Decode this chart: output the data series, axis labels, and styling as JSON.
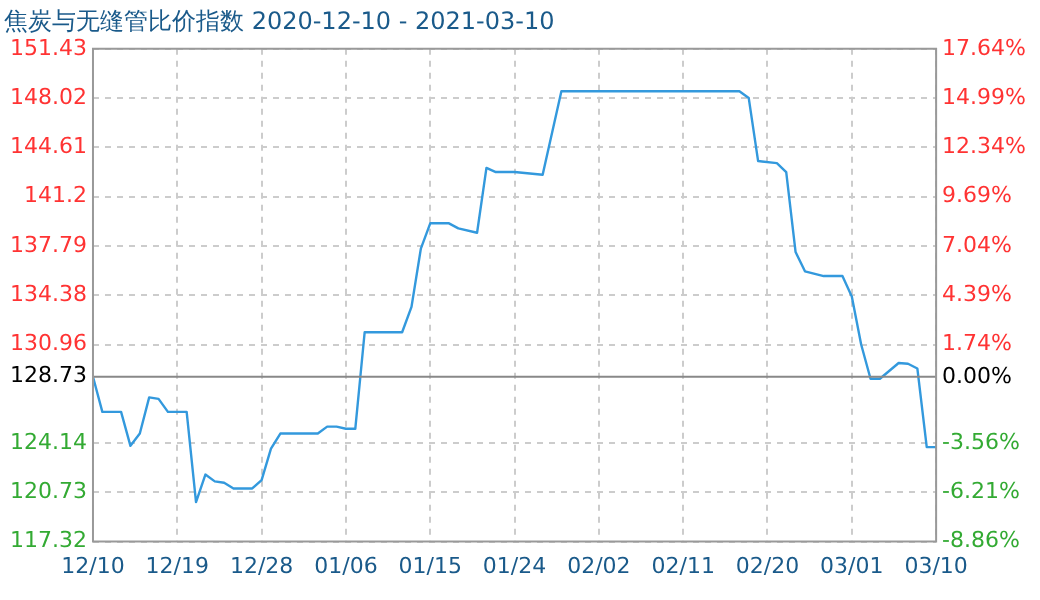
{
  "chart_data": {
    "type": "line",
    "title": "焦炭与无缝管比价指数 2020-12-10 - 2021-03-10",
    "x": [
      "2020-12-10",
      "2020-12-11",
      "2020-12-13",
      "2020-12-14",
      "2020-12-15",
      "2020-12-16",
      "2020-12-17",
      "2020-12-18",
      "2020-12-20",
      "2020-12-21",
      "2020-12-22",
      "2020-12-23",
      "2020-12-24",
      "2020-12-25",
      "2020-12-27",
      "2020-12-28",
      "2020-12-29",
      "2020-12-30",
      "2021-01-03",
      "2021-01-04",
      "2021-01-05",
      "2021-01-06",
      "2021-01-07",
      "2021-01-08",
      "2021-01-12",
      "2021-01-13",
      "2021-01-14",
      "2021-01-15",
      "2021-01-17",
      "2021-01-18",
      "2021-01-20",
      "2021-01-21",
      "2021-01-22",
      "2021-01-24",
      "2021-01-27",
      "2021-01-29",
      "2021-02-17",
      "2021-02-18",
      "2021-02-19",
      "2021-02-21",
      "2021-02-22",
      "2021-02-23",
      "2021-02-24",
      "2021-02-26",
      "2021-02-28",
      "2021-03-01",
      "2021-03-02",
      "2021-03-03",
      "2021-03-04",
      "2021-03-06",
      "2021-03-07",
      "2021-03-08",
      "2021-03-09",
      "2021-03-10"
    ],
    "series": [
      {
        "color": "#3399dd",
        "values": [
          128.73,
          126.3,
          126.3,
          123.95,
          124.8,
          127.3,
          127.2,
          126.3,
          126.3,
          120.06,
          121.96,
          121.49,
          121.39,
          121.0,
          121.0,
          121.58,
          123.76,
          124.8,
          124.8,
          125.28,
          125.28,
          125.13,
          125.13,
          131.81,
          131.81,
          133.57,
          137.6,
          139.35,
          139.35,
          139.0,
          138.7,
          143.19,
          142.9,
          142.9,
          142.71,
          148.49,
          148.49,
          148.02,
          143.66,
          143.52,
          142.9,
          137.36,
          136.03,
          135.7,
          135.7,
          134.28,
          130.96,
          128.59,
          128.59,
          129.68,
          129.63,
          129.3,
          123.86,
          123.86
        ]
      }
    ],
    "xlim": [
      "2020-12-10",
      "2021-03-10"
    ],
    "xticks": [
      {
        "value": "2020-12-10",
        "label": "12/10"
      },
      {
        "value": "2020-12-19",
        "label": "12/19"
      },
      {
        "value": "2020-12-28",
        "label": "12/28"
      },
      {
        "value": "2021-01-06",
        "label": "01/06"
      },
      {
        "value": "2021-01-15",
        "label": "01/15"
      },
      {
        "value": "2021-01-24",
        "label": "01/24"
      },
      {
        "value": "2021-02-02",
        "label": "02/02"
      },
      {
        "value": "2021-02-11",
        "label": "02/11"
      },
      {
        "value": "2021-02-20",
        "label": "02/20"
      },
      {
        "value": "2021-03-01",
        "label": "03/01"
      },
      {
        "value": "2021-03-10",
        "label": "03/10"
      }
    ],
    "ylim": [
      117.32,
      151.43
    ],
    "yticks": [
      117.32,
      120.73,
      124.14,
      130.96,
      134.38,
      137.79,
      141.2,
      144.61,
      148.02,
      151.43
    ],
    "y2lim": [
      -8.86,
      17.64
    ],
    "y2ticks": [
      {
        "value": -8.86,
        "label": "-8.86%"
      },
      {
        "value": -6.21,
        "label": "-6.21%"
      },
      {
        "value": -3.56,
        "label": "-3.56%"
      },
      {
        "value": 0,
        "label": "0.00%"
      },
      {
        "value": 1.74,
        "label": "1.74%"
      },
      {
        "value": 4.39,
        "label": "4.39%"
      },
      {
        "value": 7.04,
        "label": "7.04%"
      },
      {
        "value": 9.69,
        "label": "9.69%"
      },
      {
        "value": 12.34,
        "label": "12.34%"
      },
      {
        "value": 14.99,
        "label": "14.99%"
      },
      {
        "value": 17.64,
        "label": "17.64%"
      }
    ],
    "ref_lines": [
      {
        "axis": "y",
        "value": 128.73,
        "label": "128.73",
        "color": "#888888"
      }
    ],
    "grid": true,
    "legend": false,
    "marker": "none",
    "line_style": "solid"
  }
}
